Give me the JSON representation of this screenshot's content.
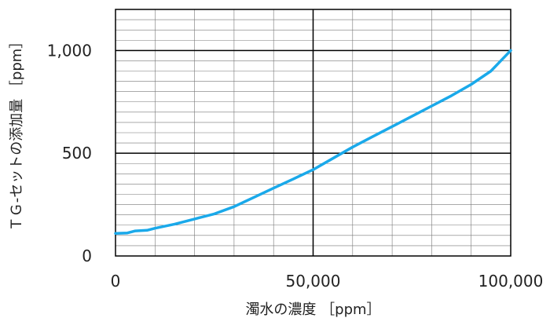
{
  "chart_data": {
    "type": "line",
    "title": "",
    "xlabel": "濁水の濃度 ［ppm］",
    "ylabel": "ＴＧ-セットの添加量 ［ppm］",
    "xlim": [
      0,
      100000
    ],
    "ylim": [
      0,
      1200
    ],
    "x_ticks": [
      0,
      50000,
      100000
    ],
    "x_tick_labels": [
      "0",
      "50,000",
      "100,000"
    ],
    "y_ticks": [
      0,
      500,
      1000
    ],
    "y_tick_labels": [
      "0",
      "500",
      "1,000"
    ],
    "grid": true,
    "legend": "none",
    "line_color": "#1aa9ea",
    "series": [
      {
        "x": [
          0,
          3000,
          5000,
          8000,
          10000,
          15000,
          20000,
          25000,
          30000,
          35000,
          40000,
          45000,
          50000,
          55000,
          60000,
          65000,
          70000,
          75000,
          80000,
          85000,
          90000,
          95000,
          100000
        ],
        "values": [
          110,
          112,
          122,
          125,
          135,
          155,
          180,
          205,
          240,
          285,
          330,
          375,
          420,
          475,
          530,
          580,
          630,
          680,
          730,
          780,
          835,
          900,
          1000
        ]
      }
    ]
  }
}
